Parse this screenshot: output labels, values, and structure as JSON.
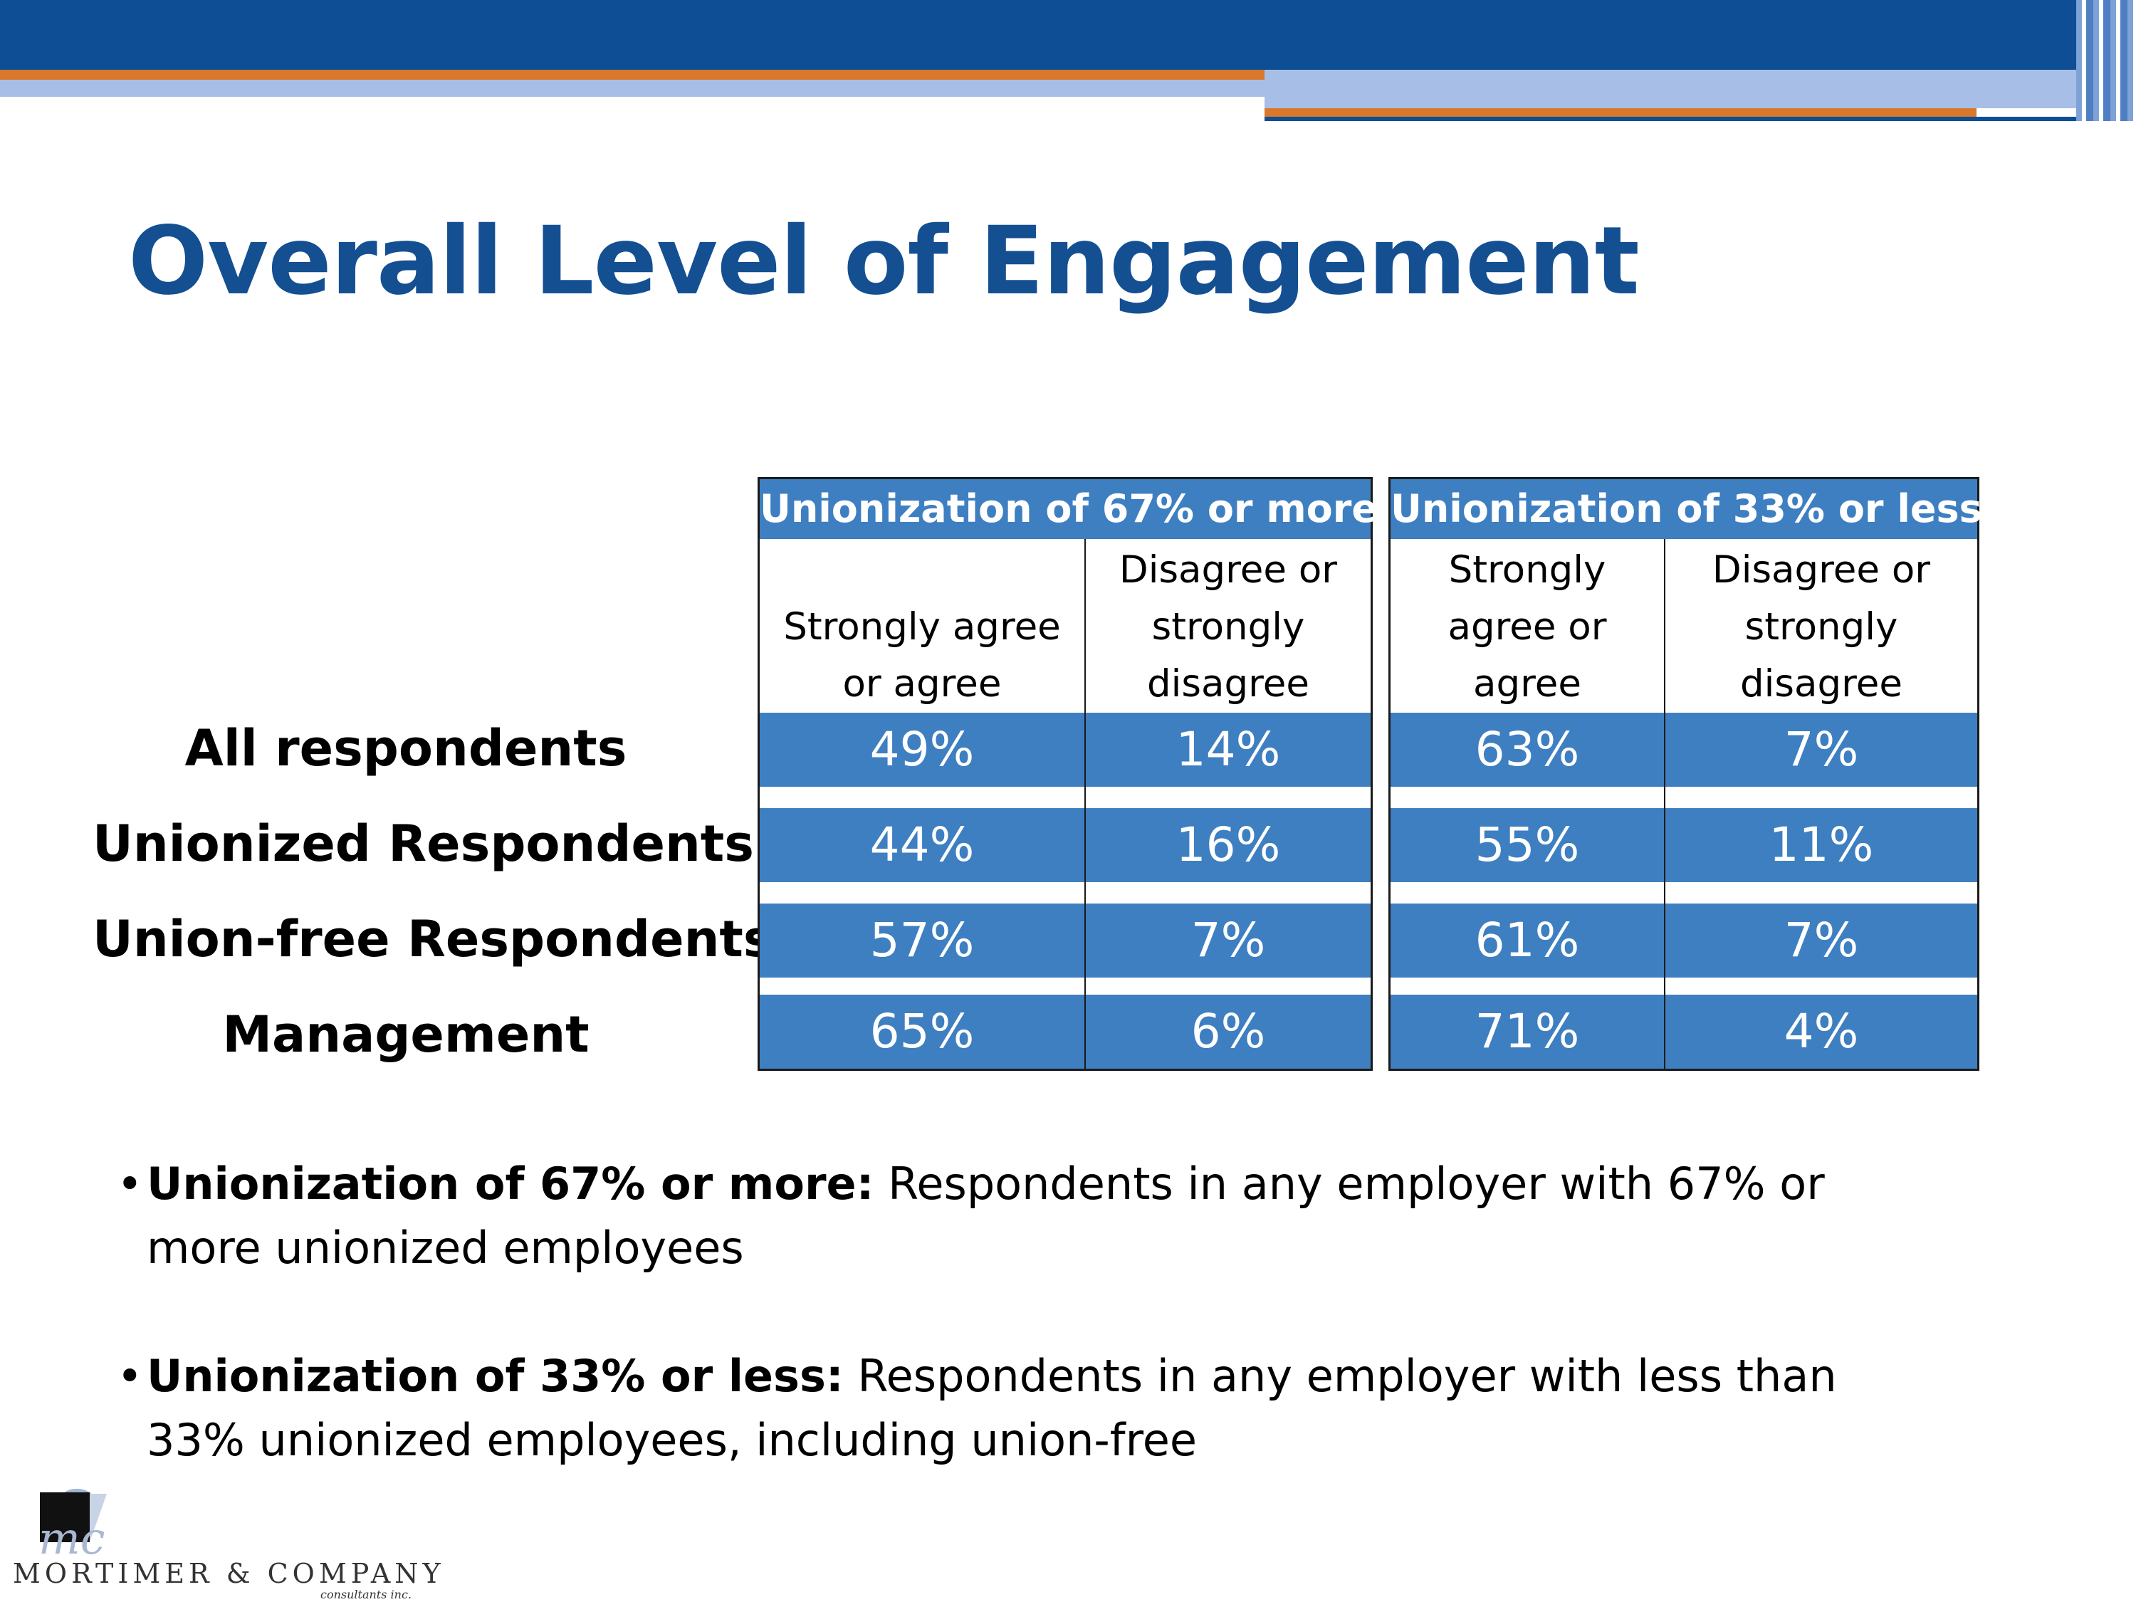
{
  "slide": {
    "title": "Overall Level of Engagement"
  },
  "table": {
    "row_labels": [
      "All respondents",
      "Unionized Respondents",
      "Union-free Respondents",
      "Management"
    ],
    "groups": [
      {
        "header": "Unionization of 67% or more",
        "columns": [
          {
            "lines": [
              "Strongly agree",
              "or agree"
            ]
          },
          {
            "lines": [
              "Disagree or",
              "strongly",
              "disagree"
            ]
          }
        ],
        "rows": [
          [
            "49%",
            "14%"
          ],
          [
            "44%",
            "16%"
          ],
          [
            "57%",
            "7%"
          ],
          [
            "65%",
            "6%"
          ]
        ]
      },
      {
        "header": "Unionization of 33% or less",
        "columns": [
          {
            "lines": [
              "Strongly",
              "agree or",
              "agree"
            ]
          },
          {
            "lines": [
              "Disagree or",
              "strongly",
              "disagree"
            ]
          }
        ],
        "rows": [
          [
            "63%",
            "7%"
          ],
          [
            "55%",
            "11%"
          ],
          [
            "61%",
            "7%"
          ],
          [
            "71%",
            "4%"
          ]
        ]
      }
    ]
  },
  "notes": [
    {
      "bullet": "•",
      "term": "Unionization of 67% or more:",
      "text": " Respondents in any employer with 67% or more unionized employees"
    },
    {
      "bullet": "•",
      "term": "Unionization of 33% or less:",
      "text": " Respondents in any employer with less than 33% unionized employees, including union-free"
    }
  ],
  "logo": {
    "mark": "mc",
    "name": "MORTIMER & COMPANY",
    "tagline": "consultants inc."
  },
  "colors": {
    "header_blue": "#0d4e94",
    "accent_orange": "#d9782b",
    "table_blue": "#3e7fc1",
    "title_blue": "#144f92"
  }
}
